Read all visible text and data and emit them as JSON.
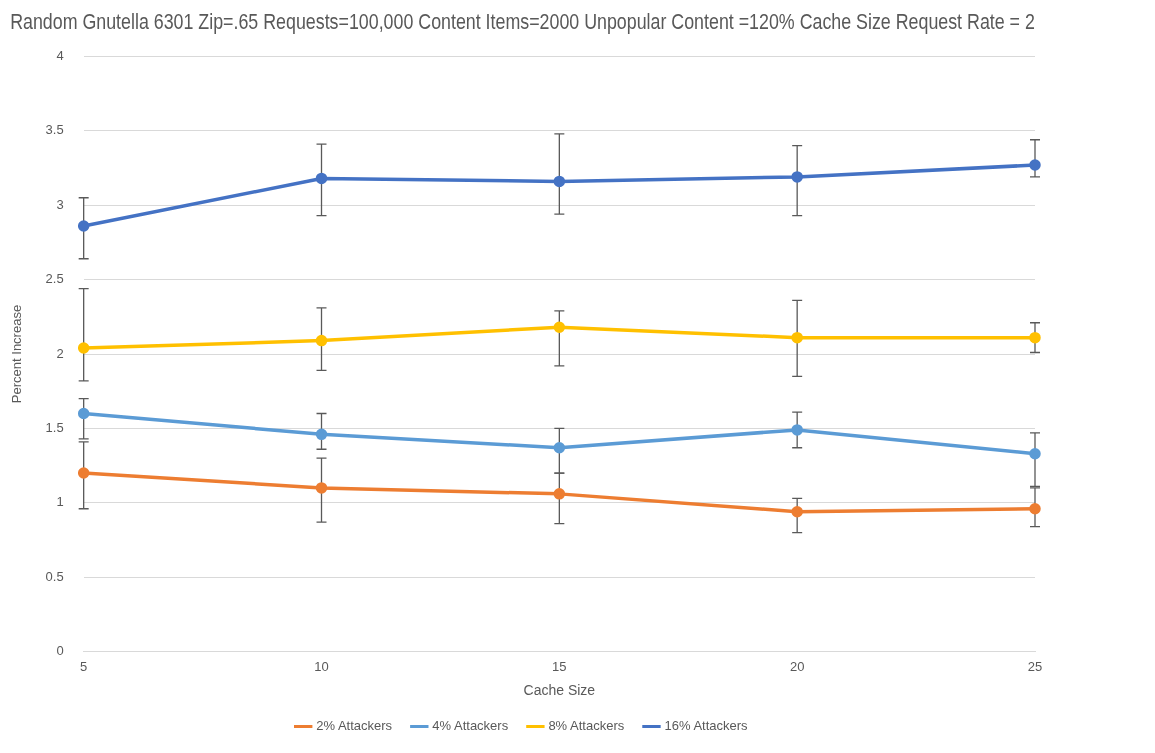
{
  "chart_data": {
    "type": "line",
    "title": "Random Gnutella 6301 Zip=.65 Requests=100,000 Content Items=2000 Unpopular Content =120% Cache Size Request Rate = 2",
    "xlabel": "Cache Size",
    "ylabel": "Percent Increase",
    "categories": [
      "5",
      "10",
      "15",
      "20",
      "25"
    ],
    "ylim": [
      0,
      4
    ],
    "yticks": [
      0,
      0.5,
      1,
      1.5,
      2,
      2.5,
      3,
      3.5,
      4
    ],
    "grid": "y",
    "legend": "bottom",
    "marker": "circle",
    "line_style": "solid",
    "series": [
      {
        "name": "2% Attackers",
        "color": "#ed7d31",
        "values": [
          1.2,
          1.1,
          1.06,
          0.94,
          0.96
        ],
        "errors": [
          [
            0.96,
            1.41
          ],
          [
            0.87,
            1.3
          ],
          [
            0.86,
            1.2
          ],
          [
            0.8,
            1.03
          ],
          [
            0.84,
            1.1
          ]
        ]
      },
      {
        "name": "4% Attackers",
        "color": "#5b9bd5",
        "values": [
          1.6,
          1.46,
          1.37,
          1.49,
          1.33
        ],
        "errors": [
          [
            1.43,
            1.7
          ],
          [
            1.36,
            1.6
          ],
          [
            1.2,
            1.5
          ],
          [
            1.37,
            1.61
          ],
          [
            1.11,
            1.47
          ]
        ]
      },
      {
        "name": "8% Attackers",
        "color": "#ffc000",
        "values": [
          2.04,
          2.09,
          2.18,
          2.11,
          2.11
        ],
        "errors": [
          [
            1.82,
            2.44
          ],
          [
            1.89,
            2.31
          ],
          [
            1.92,
            2.29
          ],
          [
            1.85,
            2.36
          ],
          [
            2.01,
            2.21
          ]
        ]
      },
      {
        "name": "16% Attackers",
        "color": "#4472c4",
        "values": [
          2.86,
          3.18,
          3.16,
          3.19,
          3.27
        ],
        "errors": [
          [
            2.64,
            3.05
          ],
          [
            2.93,
            3.41
          ],
          [
            2.94,
            3.48
          ],
          [
            2.93,
            3.4
          ],
          [
            3.19,
            3.44
          ]
        ]
      }
    ]
  }
}
